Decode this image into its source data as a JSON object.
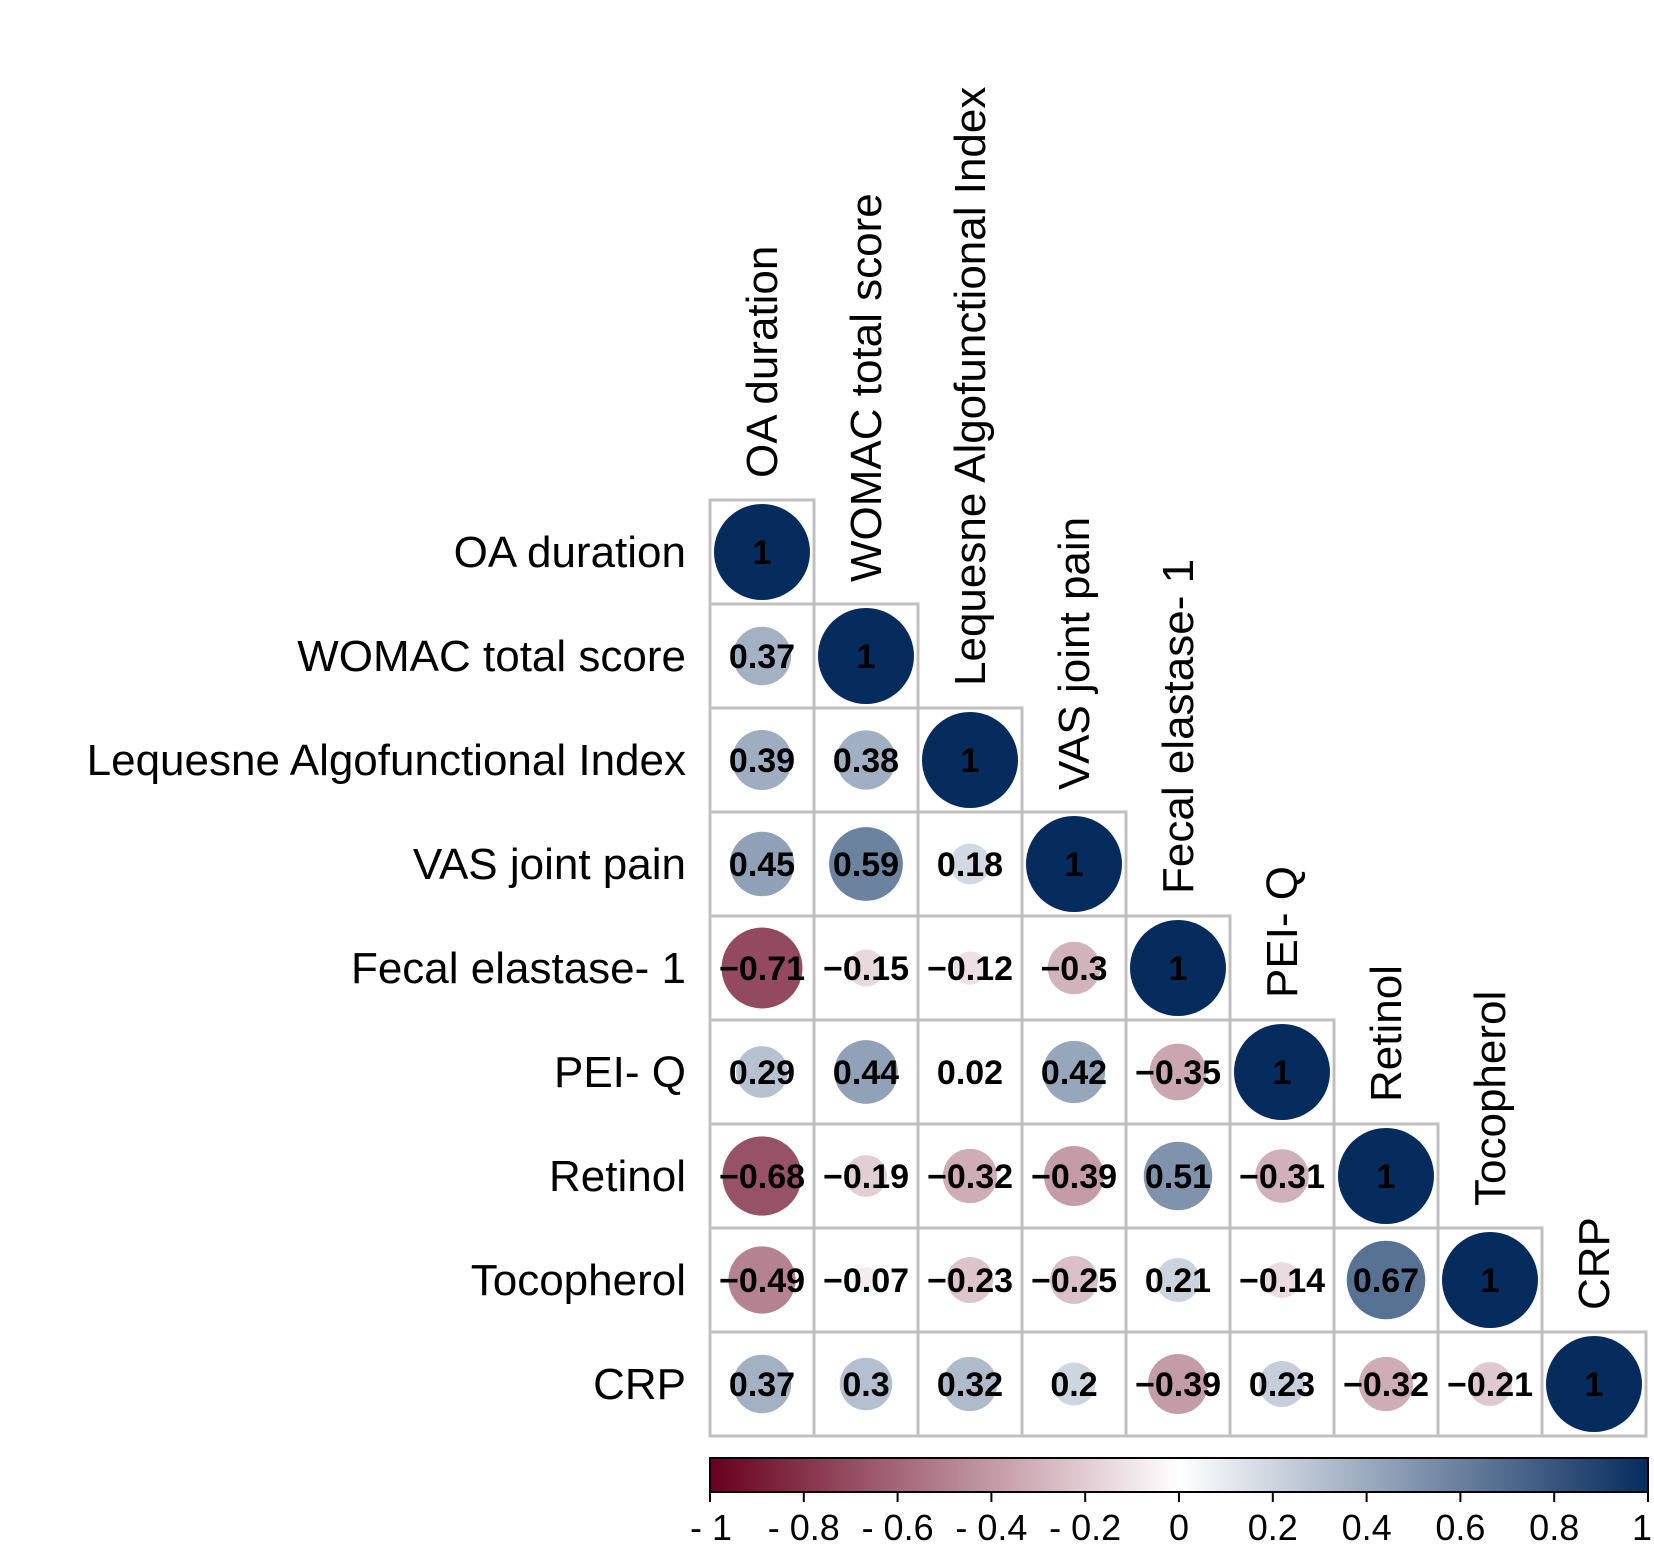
{
  "chart_data": {
    "type": "heatmap",
    "subtype": "correlation-lower-triangle",
    "variables": [
      "OA duration",
      "WOMAC total score",
      "Lequesne Algofunctional Index",
      "VAS joint pain",
      "Fecal elastase- 1",
      "PEI- Q",
      "Retinol",
      "Tocopherol",
      "CRP"
    ],
    "values": [
      [
        1
      ],
      [
        0.37,
        1
      ],
      [
        0.39,
        0.38,
        1
      ],
      [
        0.45,
        0.59,
        0.18,
        1
      ],
      [
        -0.71,
        -0.15,
        -0.12,
        -0.3,
        1
      ],
      [
        0.29,
        0.44,
        0.02,
        0.42,
        -0.35,
        1
      ],
      [
        -0.68,
        -0.19,
        -0.32,
        -0.39,
        0.51,
        -0.31,
        1
      ],
      [
        -0.49,
        -0.07,
        -0.23,
        -0.25,
        0.21,
        -0.14,
        0.67,
        1
      ],
      [
        0.37,
        0.3,
        0.32,
        0.2,
        -0.39,
        0.23,
        -0.32,
        -0.21,
        1
      ]
    ],
    "colorbar": {
      "range": [
        -1,
        1
      ],
      "ticks": [
        -1,
        -0.8,
        -0.6,
        -0.4,
        -0.2,
        0,
        0.2,
        0.4,
        0.6,
        0.8,
        1
      ],
      "tick_labels": [
        "- 1",
        "- 0.8",
        "- 0.6",
        "- 0.4",
        "- 0.2",
        "0",
        "0.2",
        "0.4",
        "0.6",
        "0.8",
        "1"
      ],
      "colors": {
        "negative": "#67001f",
        "zero": "#ffffff",
        "positive": "#062c5e"
      }
    },
    "grid_color": "#c0c0c0"
  }
}
